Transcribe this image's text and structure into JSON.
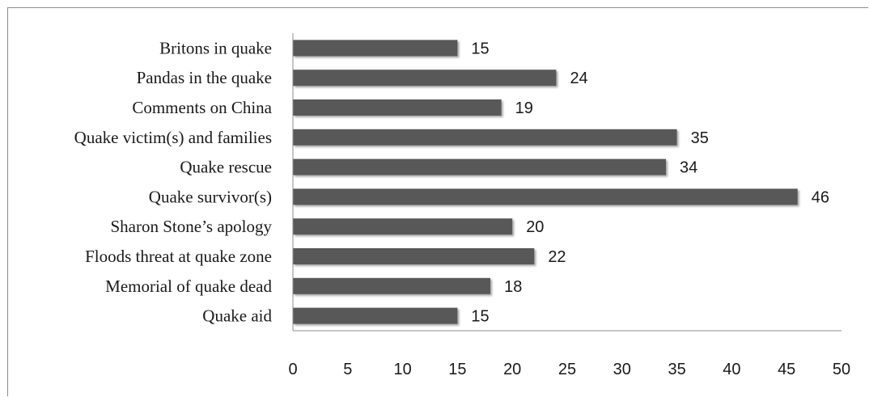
{
  "chart_data": {
    "type": "bar",
    "orientation": "horizontal",
    "categories": [
      "Britons in quake",
      "Pandas in the quake",
      "Comments on China",
      "Quake victim(s) and families",
      "Quake rescue",
      "Quake survivor(s)",
      "Sharon Stone’s apology",
      "Floods threat at quake zone",
      "Memorial of quake dead",
      "Quake aid"
    ],
    "values": [
      15,
      24,
      19,
      35,
      34,
      46,
      20,
      22,
      18,
      15
    ],
    "data_labels": [
      "15",
      "24",
      "19",
      "35",
      "34",
      "46",
      "20",
      "22",
      "18",
      "15"
    ],
    "xlim": [
      0,
      50
    ],
    "x_ticks": [
      0,
      5,
      10,
      15,
      20,
      25,
      30,
      35,
      40,
      45,
      50
    ],
    "x_tick_labels": [
      "0",
      "5",
      "10",
      "15",
      "20",
      "25",
      "30",
      "35",
      "40",
      "45",
      "50"
    ],
    "bar_color": "#595959",
    "grid": false,
    "legend": "none"
  }
}
